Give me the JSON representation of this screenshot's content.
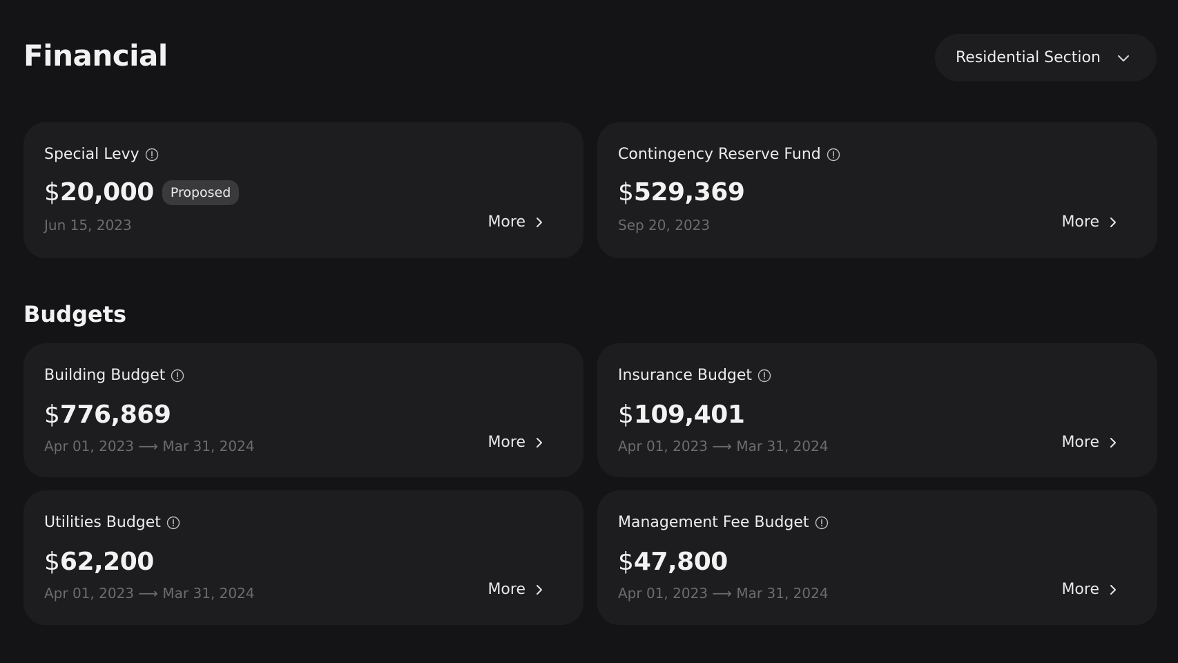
{
  "header": {
    "title": "Financial",
    "dropdown": {
      "selected": "Residential Section",
      "icon": "chevron-down-icon"
    }
  },
  "financial_cards": [
    {
      "title": "Special Levy",
      "currency": "$",
      "amount": "20,000",
      "badge": "Proposed",
      "date": "Jun 15, 2023",
      "more": "More"
    },
    {
      "title": "Contingency Reserve Fund",
      "currency": "$",
      "amount": "529,369",
      "date": "Sep 20, 2023",
      "more": "More"
    }
  ],
  "budgets": {
    "title": "Budgets",
    "cards": [
      {
        "title": "Building Budget",
        "currency": "$",
        "amount": "776,869",
        "date": "Apr 01, 2023 ⟶ Mar 31, 2024",
        "more": "More"
      },
      {
        "title": "Insurance Budget",
        "currency": "$",
        "amount": "109,401",
        "date": "Apr 01, 2023 ⟶ Mar 31, 2024",
        "more": "More"
      },
      {
        "title": "Utilities Budget",
        "currency": "$",
        "amount": "62,200",
        "date": "Apr 01, 2023 ⟶ Mar 31, 2024",
        "more": "More"
      },
      {
        "title": "Management Fee Budget",
        "currency": "$",
        "amount": "47,800",
        "date": "Apr 01, 2023 ⟶ Mar 31, 2024",
        "more": "More"
      }
    ]
  }
}
